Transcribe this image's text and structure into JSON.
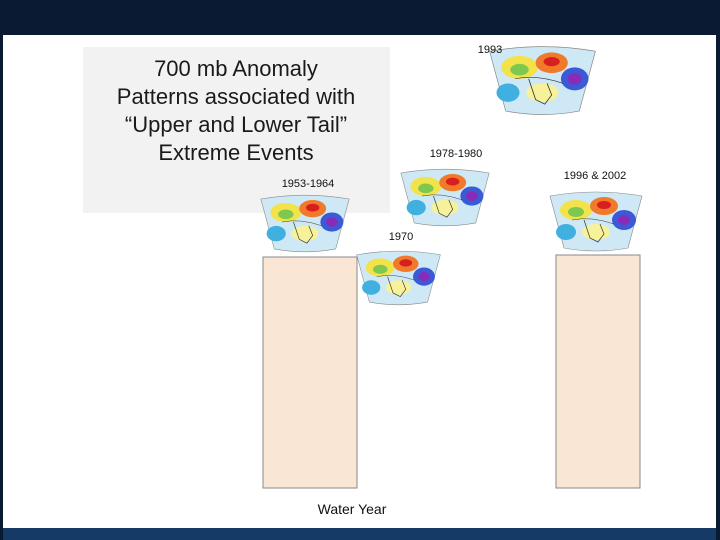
{
  "title_lines": [
    "700 mb Anomaly",
    "Patterns associated with",
    "“Upper and Lower Tail”",
    "Extreme Events"
  ],
  "maps": [
    {
      "label": "1993"
    },
    {
      "label": "1978-1980"
    },
    {
      "label": "1996 & 2002"
    },
    {
      "label": "1953-1964"
    },
    {
      "label": "1970"
    }
  ],
  "axis_label": "Water Year"
}
